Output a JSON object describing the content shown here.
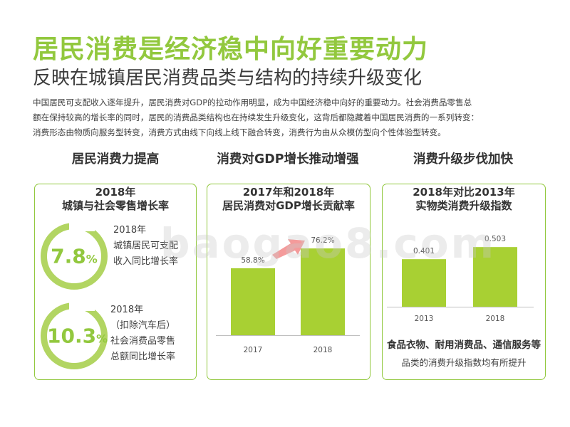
{
  "header": {
    "title": "居民消费是经济稳中向好重要动力",
    "subtitle": "反映在城镇居民消费品类与结构的持续升级变化"
  },
  "intro": [
    "中国居民可支配收入逐年提升，居民消费对GDP的拉动作用明显，成为中国经济稳中向好的重要动力。社会消费品零售总",
    "额在保持较高的增长率的同时，居民的消费品类结构也在持续发生升级变化，这背后都隐藏着中国居民消费的一系列转变：",
    "消费形态由物质向服务型转变，消费方式由线下向线上线下融合转变，消费行为由从众模仿型向个性体验型转变。"
  ],
  "sections": [
    "居民消费力提高",
    "消费对GDP增长推动增强",
    "消费升级步伐加快"
  ],
  "panel1": {
    "title": [
      "2018年",
      "城镇与社会零售增长率"
    ],
    "stats": [
      {
        "value": "7.8",
        "unit": "%",
        "lines": [
          "2018年",
          "城镇居民可支配",
          "收入同比增长率"
        ]
      },
      {
        "value": "10.3",
        "unit": "%",
        "lines": [
          "2018年",
          "（扣除汽车后）",
          "社会消费品零售",
          "总额同比增长率"
        ]
      }
    ]
  },
  "panel2": {
    "title": [
      "2017年和2018年",
      "居民消费对GDP增长贡献率"
    ]
  },
  "panel3": {
    "title": [
      "2018年对比2013年",
      "实物类消费升级指数"
    ],
    "note": [
      "食品衣物、耐用消费品、通信服务等",
      "品类的消费升级指数均有所提升"
    ]
  },
  "watermark": "baogao8.com",
  "colors": {
    "accent": "#92c83e",
    "bar": "#a8d033",
    "border": "#92c83e"
  },
  "chart_data": [
    {
      "type": "bar",
      "title": "2017年和2018年居民消费对GDP增长贡献率",
      "categories": [
        "2017",
        "2018"
      ],
      "values": [
        58.8,
        76.2
      ],
      "labels": [
        "58.8%",
        "76.2%"
      ],
      "ylim": [
        0,
        80
      ]
    },
    {
      "type": "bar",
      "title": "2018年对比2013年实物类消费升级指数",
      "categories": [
        "2013",
        "2018"
      ],
      "values": [
        0.401,
        0.503
      ],
      "labels": [
        "0.401",
        "0.503"
      ],
      "ylim": [
        0,
        0.6
      ]
    }
  ]
}
